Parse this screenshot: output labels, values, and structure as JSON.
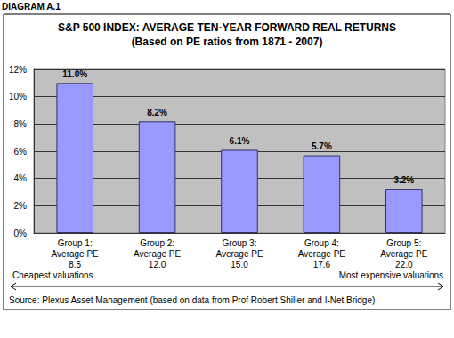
{
  "chart_data": {
    "type": "bar",
    "title": "S&P 500 INDEX: AVERAGE TEN-YEAR FORWARD REAL RETURNS",
    "subtitle": "(Based on PE ratios from 1871 - 2007)",
    "categories": [
      "Group 1:\nAverage PE\n8.5",
      "Group 2:\nAverage PE\n12.0",
      "Group 3:\nAverage PE\n15.0",
      "Group 4:\nAverage PE\n17.6",
      "Group 5:\nAverage PE\n22.0"
    ],
    "values": [
      11.0,
      8.2,
      6.1,
      5.7,
      3.2
    ],
    "value_labels": [
      "11.0%",
      "8.2%",
      "6.1%",
      "5.7%",
      "3.2%"
    ],
    "color": "#9999ff",
    "ylim": [
      0,
      12
    ],
    "yticks": [
      {
        "value": 0,
        "label": "0%"
      },
      {
        "value": 2,
        "label": "2%"
      },
      {
        "value": 4,
        "label": "4%"
      },
      {
        "value": 6,
        "label": "6%"
      },
      {
        "value": 8,
        "label": "8%"
      },
      {
        "value": 10,
        "label": "10%"
      },
      {
        "value": 12,
        "label": "12%"
      }
    ],
    "grid": true,
    "data_labels": true,
    "annotations": [
      "DIAGRAM A.1",
      "Cheapest valuations",
      "Most expensive valuations",
      "Source: Plexus Asset Management (based on data from Prof Robert Shiller and I-Net Bridge)"
    ]
  }
}
